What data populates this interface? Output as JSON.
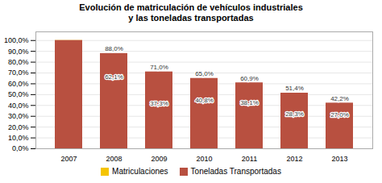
{
  "chart_data": {
    "type": "bar",
    "title": "Evolución de matriculación de vehículos industriales\ny las toneladas transportadas",
    "categories": [
      "2007",
      "2008",
      "2009",
      "2010",
      "2011",
      "2012",
      "2013"
    ],
    "series": [
      {
        "name": "Matriculaciones",
        "color": "#F5C400",
        "values": [
          100.0,
          62.1,
          37.3,
          40.8,
          38.1,
          28.3,
          27.0
        ],
        "value_labels": [
          null,
          "62,1%",
          "37,3%",
          "40,8%",
          "38,1%",
          "28,3%",
          "27,0%"
        ]
      },
      {
        "name": "Toneladas Transportadas",
        "color": "#B85040",
        "values": [
          100.0,
          88.0,
          71.0,
          65.0,
          60.9,
          51.4,
          42.2
        ],
        "value_labels": [
          null,
          "88,0%",
          "71,0%",
          "65,0%",
          "60,9%",
          "51,4%",
          "42,2%"
        ]
      }
    ],
    "ylim": [
      0,
      108
    ],
    "yticks": [
      {
        "value": 0,
        "label": "0,0%"
      },
      {
        "value": 10,
        "label": "10,0%"
      },
      {
        "value": 20,
        "label": "20,0%"
      },
      {
        "value": 30,
        "label": "30,0%"
      },
      {
        "value": 40,
        "label": "40,0%"
      },
      {
        "value": 50,
        "label": "50,0%"
      },
      {
        "value": 60,
        "label": "60,0%"
      },
      {
        "value": 70,
        "label": "70,0%"
      },
      {
        "value": 80,
        "label": "80,0%"
      },
      {
        "value": 90,
        "label": "90,0%"
      },
      {
        "value": 100,
        "label": "100,0%"
      }
    ],
    "grid": true,
    "legend": "bottom",
    "stacked": false,
    "data_labels": true
  }
}
